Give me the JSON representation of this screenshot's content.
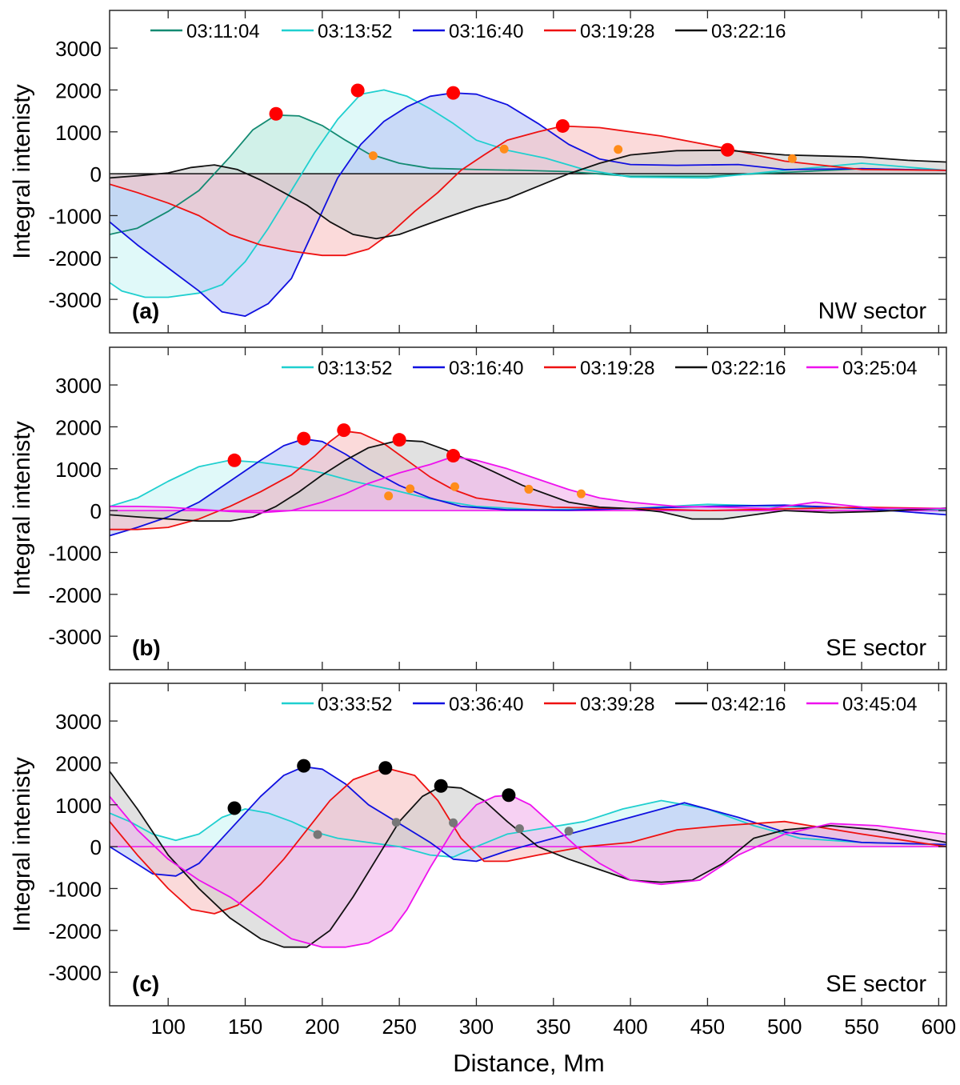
{
  "figure": {
    "xlabel": "Distance, Mm",
    "ylabel": "Integral intenisty",
    "xlim": [
      62,
      605
    ],
    "ylim": [
      -3800,
      3900
    ],
    "xticks": [
      100,
      150,
      200,
      250,
      300,
      350,
      400,
      450,
      500,
      550,
      600
    ],
    "yticks": [
      -3000,
      -2000,
      -1000,
      0,
      1000,
      2000,
      3000
    ]
  },
  "chart_data": [
    {
      "type": "area",
      "panel_label": "(a)",
      "sector": "NW sector",
      "title": "",
      "xlabel": "Distance, Mm",
      "ylabel": "Integral intenisty",
      "xlim": [
        62,
        605
      ],
      "ylim": [
        -3800,
        3900
      ],
      "peak_color": "#ff0000",
      "secondary_color": "#ff8c1a",
      "series": [
        {
          "name": "03:11:04",
          "color": "#138a72",
          "fill": "#b5e8dc",
          "x": [
            62,
            80,
            100,
            120,
            140,
            155,
            170,
            185,
            200,
            215,
            230,
            250,
            270,
            300,
            330,
            360,
            400,
            450,
            500,
            550,
            605
          ],
          "y": [
            -1450,
            -1300,
            -900,
            -400,
            400,
            1050,
            1400,
            1380,
            1150,
            800,
            480,
            250,
            130,
            100,
            80,
            50,
            -60,
            -60,
            30,
            120,
            80
          ],
          "peak": [
            170,
            1430
          ],
          "marker": [
            233,
            430
          ]
        },
        {
          "name": "03:13:52",
          "color": "#1fcfcf",
          "fill": "#cdf6f6",
          "x": [
            62,
            70,
            85,
            100,
            120,
            135,
            150,
            165,
            180,
            195,
            210,
            225,
            240,
            255,
            270,
            285,
            300,
            320,
            345,
            370,
            400,
            450,
            500,
            550,
            605
          ],
          "y": [
            -2600,
            -2800,
            -2950,
            -2950,
            -2850,
            -2650,
            -2100,
            -1300,
            -400,
            500,
            1300,
            1900,
            2000,
            1850,
            1550,
            1200,
            800,
            560,
            370,
            100,
            -80,
            -100,
            80,
            250,
            80
          ],
          "peak": [
            223,
            1990
          ],
          "marker": [
            318,
            590
          ]
        },
        {
          "name": "03:16:40",
          "color": "#1010e0",
          "fill": "#bcc6f6",
          "x": [
            62,
            80,
            100,
            120,
            135,
            150,
            165,
            180,
            195,
            210,
            225,
            240,
            255,
            270,
            285,
            300,
            320,
            340,
            360,
            380,
            400,
            430,
            470,
            500,
            550,
            605
          ],
          "y": [
            -1150,
            -1700,
            -2250,
            -2800,
            -3300,
            -3400,
            -3100,
            -2500,
            -1300,
            -100,
            700,
            1250,
            1600,
            1850,
            1930,
            1900,
            1650,
            1200,
            700,
            350,
            220,
            200,
            220,
            100,
            120,
            80
          ],
          "peak": [
            285,
            1930
          ],
          "marker": [
            392,
            580
          ]
        },
        {
          "name": "03:19:28",
          "color": "#ee1111",
          "fill": "#f9c4c4",
          "x": [
            62,
            80,
            100,
            120,
            140,
            160,
            180,
            200,
            215,
            230,
            245,
            260,
            275,
            290,
            305,
            320,
            340,
            356,
            380,
            420,
            460,
            500,
            550,
            605
          ],
          "y": [
            -250,
            -450,
            -700,
            -1000,
            -1450,
            -1700,
            -1850,
            -1950,
            -1950,
            -1800,
            -1400,
            -900,
            -450,
            80,
            450,
            800,
            1000,
            1140,
            1100,
            900,
            620,
            300,
            100,
            80
          ],
          "peak": [
            356,
            1140
          ],
          "marker": [
            505,
            360
          ]
        },
        {
          "name": "03:22:16",
          "color": "#111111",
          "fill": "#cfcfcf",
          "x": [
            62,
            80,
            100,
            115,
            130,
            145,
            160,
            175,
            190,
            205,
            220,
            235,
            250,
            265,
            280,
            300,
            320,
            340,
            360,
            380,
            400,
            430,
            463,
            500,
            550,
            580,
            605
          ],
          "y": [
            -100,
            -50,
            20,
            150,
            210,
            100,
            -150,
            -450,
            -750,
            -1150,
            -1450,
            -1550,
            -1450,
            -1250,
            -1050,
            -800,
            -600,
            -300,
            0,
            250,
            450,
            550,
            560,
            450,
            400,
            320,
            280
          ],
          "peak": [
            463,
            570
          ],
          "marker": null
        }
      ]
    },
    {
      "type": "area",
      "panel_label": "(b)",
      "sector": "SE sector",
      "title": "",
      "xlabel": "Distance, Mm",
      "ylabel": "Integral intenisty",
      "xlim": [
        62,
        605
      ],
      "ylim": [
        -3800,
        3900
      ],
      "peak_color": "#ff0000",
      "secondary_color": "#ff8c1a",
      "series": [
        {
          "name": "03:13:52",
          "color": "#1fcfcf",
          "fill": "#cdf6f6",
          "x": [
            62,
            80,
            100,
            120,
            140,
            160,
            180,
            200,
            220,
            245,
            270,
            300,
            340,
            400,
            450,
            500,
            550,
            605
          ],
          "y": [
            100,
            300,
            700,
            1050,
            1200,
            1150,
            1050,
            900,
            700,
            500,
            280,
            100,
            20,
            50,
            150,
            100,
            50,
            20
          ],
          "peak": [
            143,
            1200
          ],
          "marker": [
            243,
            350
          ]
        },
        {
          "name": "03:16:40",
          "color": "#1010e0",
          "fill": "#bcc6f6",
          "x": [
            62,
            80,
            100,
            120,
            140,
            160,
            175,
            188,
            200,
            215,
            230,
            250,
            270,
            290,
            320,
            360,
            400,
            450,
            500,
            550,
            605
          ],
          "y": [
            -600,
            -400,
            -150,
            200,
            700,
            1200,
            1550,
            1710,
            1650,
            1350,
            1000,
            600,
            300,
            100,
            20,
            10,
            50,
            100,
            130,
            50,
            -100
          ],
          "peak": [
            188,
            1720
          ],
          "marker": [
            257,
            520
          ]
        },
        {
          "name": "03:19:28",
          "color": "#ee1111",
          "fill": "#f9c4c4",
          "x": [
            62,
            80,
            100,
            120,
            140,
            160,
            180,
            195,
            205,
            214,
            225,
            240,
            255,
            270,
            285,
            300,
            320,
            350,
            400,
            450,
            500,
            550,
            605
          ],
          "y": [
            -450,
            -450,
            -400,
            -200,
            100,
            450,
            850,
            1300,
            1650,
            1900,
            1850,
            1600,
            1200,
            800,
            500,
            300,
            200,
            80,
            50,
            0,
            40,
            80,
            50
          ],
          "peak": [
            214,
            1920
          ],
          "marker": [
            286,
            570
          ]
        },
        {
          "name": "03:22:16",
          "color": "#111111",
          "fill": "#cfcfcf",
          "x": [
            62,
            80,
            100,
            120,
            140,
            155,
            170,
            185,
            200,
            215,
            230,
            250,
            265,
            280,
            295,
            310,
            330,
            360,
            380,
            400,
            420,
            440,
            460,
            480,
            500,
            530,
            560,
            605
          ],
          "y": [
            -100,
            -150,
            -200,
            -250,
            -250,
            -150,
            100,
            450,
            850,
            1200,
            1500,
            1680,
            1650,
            1450,
            1200,
            950,
            600,
            200,
            80,
            50,
            -30,
            -200,
            -200,
            -100,
            0,
            -50,
            -20,
            60
          ],
          "peak": [
            250,
            1690
          ],
          "marker": [
            334,
            510
          ]
        },
        {
          "name": "03:25:04",
          "color": "#ee11ee",
          "fill": "#f2b4ec",
          "x": [
            62,
            80,
            100,
            120,
            140,
            160,
            180,
            200,
            215,
            230,
            250,
            270,
            285,
            300,
            320,
            340,
            360,
            380,
            400,
            430,
            460,
            490,
            520,
            560,
            605
          ],
          "y": [
            100,
            100,
            80,
            30,
            -20,
            -50,
            0,
            200,
            400,
            650,
            900,
            1100,
            1290,
            1200,
            1000,
            750,
            500,
            300,
            200,
            100,
            80,
            50,
            200,
            50,
            50
          ],
          "peak": [
            285,
            1310
          ],
          "marker": [
            368,
            400
          ]
        }
      ]
    },
    {
      "type": "area",
      "panel_label": "(c)",
      "sector": "SE sector",
      "title": "",
      "xlabel": "Distance, Mm",
      "ylabel": "Integral intenisty",
      "xlim": [
        62,
        605
      ],
      "ylim": [
        -3800,
        3900
      ],
      "peak_color": "#000000",
      "secondary_color": "#777777",
      "series": [
        {
          "name": "03:33:52",
          "color": "#1fcfcf",
          "fill": "#cdf6f6",
          "x": [
            62,
            75,
            90,
            105,
            120,
            135,
            150,
            165,
            180,
            195,
            210,
            230,
            250,
            270,
            285,
            300,
            320,
            345,
            370,
            395,
            420,
            450,
            480,
            510,
            550,
            605
          ],
          "y": [
            800,
            600,
            300,
            150,
            300,
            700,
            900,
            800,
            600,
            350,
            200,
            100,
            0,
            -200,
            -250,
            0,
            300,
            450,
            600,
            900,
            1100,
            900,
            500,
            200,
            100,
            50
          ],
          "peak": [
            143,
            920
          ],
          "marker": [
            197,
            290
          ]
        },
        {
          "name": "03:36:40",
          "color": "#1010e0",
          "fill": "#bcc6f6",
          "x": [
            62,
            75,
            90,
            105,
            120,
            140,
            160,
            175,
            188,
            200,
            215,
            230,
            250,
            270,
            285,
            300,
            320,
            345,
            370,
            400,
            435,
            470,
            500,
            550,
            605
          ],
          "y": [
            0,
            -300,
            -650,
            -700,
            -400,
            400,
            1200,
            1700,
            1910,
            1850,
            1500,
            1000,
            550,
            100,
            -300,
            -350,
            -100,
            150,
            400,
            700,
            1050,
            700,
            350,
            100,
            50
          ],
          "peak": [
            188,
            1930
          ],
          "marker": [
            248,
            580
          ]
        },
        {
          "name": "03:39:28",
          "color": "#ee1111",
          "fill": "#f9c4c4",
          "x": [
            62,
            80,
            100,
            115,
            130,
            145,
            160,
            175,
            190,
            205,
            220,
            241,
            260,
            275,
            290,
            305,
            320,
            340,
            370,
            400,
            430,
            460,
            500,
            550,
            605
          ],
          "y": [
            600,
            -200,
            -1000,
            -1500,
            -1600,
            -1400,
            -900,
            -300,
            400,
            1100,
            1600,
            1880,
            1700,
            1100,
            200,
            -350,
            -350,
            -200,
            0,
            100,
            400,
            500,
            600,
            300,
            0
          ],
          "peak": [
            241,
            1880
          ],
          "marker": [
            285,
            570
          ]
        },
        {
          "name": "03:42:16",
          "color": "#111111",
          "fill": "#cfcfcf",
          "x": [
            62,
            80,
            100,
            120,
            140,
            160,
            175,
            190,
            205,
            220,
            235,
            250,
            265,
            277,
            290,
            305,
            320,
            340,
            360,
            380,
            400,
            420,
            440,
            460,
            480,
            500,
            530,
            560,
            605
          ],
          "y": [
            1800,
            900,
            -200,
            -1000,
            -1700,
            -2200,
            -2400,
            -2400,
            -2000,
            -1200,
            -300,
            600,
            1200,
            1440,
            1400,
            1100,
            600,
            0,
            -300,
            -550,
            -800,
            -850,
            -800,
            -400,
            200,
            400,
            500,
            400,
            100
          ],
          "peak": [
            277,
            1450
          ],
          "marker": [
            328,
            430
          ]
        },
        {
          "name": "03:45:04",
          "color": "#ee11ee",
          "fill": "#f2b4ec",
          "x": [
            62,
            80,
            100,
            120,
            140,
            160,
            180,
            200,
            215,
            230,
            245,
            255,
            270,
            285,
            300,
            312,
            322,
            335,
            350,
            365,
            380,
            400,
            420,
            445,
            470,
            500,
            530,
            560,
            605
          ],
          "y": [
            1200,
            400,
            -300,
            -800,
            -1200,
            -1700,
            -2200,
            -2400,
            -2400,
            -2300,
            -2000,
            -1500,
            -500,
            400,
            1000,
            1200,
            1230,
            1000,
            500,
            0,
            -400,
            -800,
            -900,
            -800,
            -200,
            300,
            550,
            500,
            300
          ],
          "peak": [
            321,
            1230
          ],
          "marker": [
            360,
            370
          ]
        }
      ]
    }
  ]
}
